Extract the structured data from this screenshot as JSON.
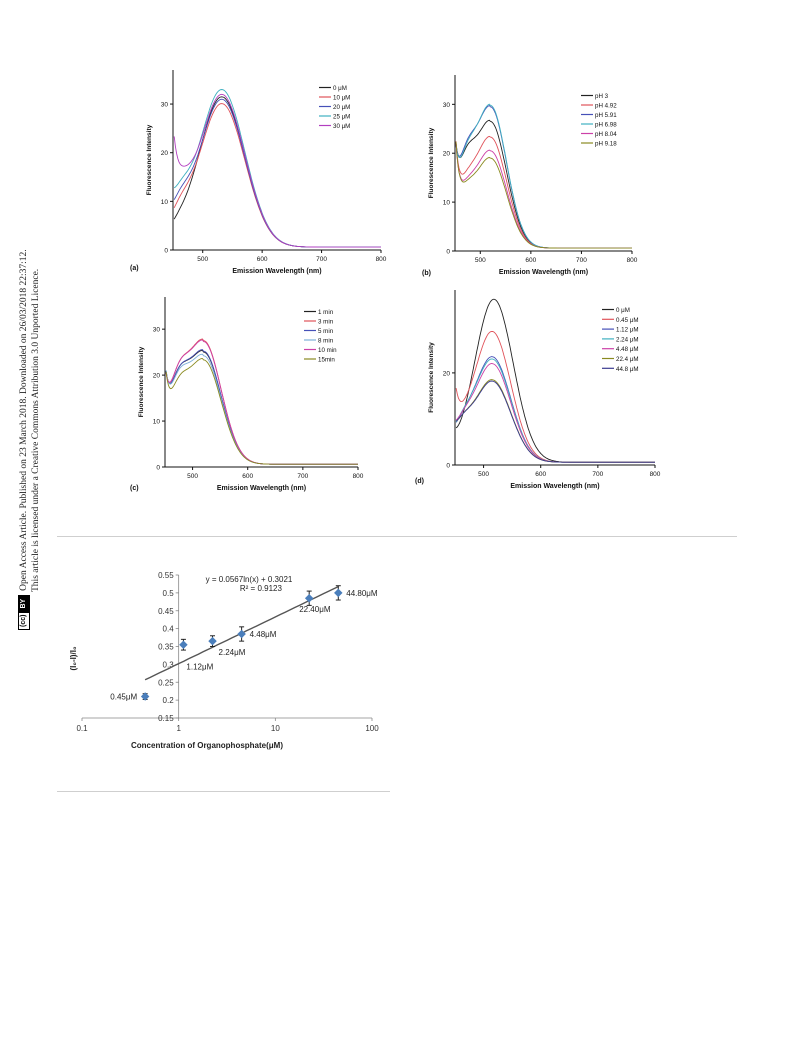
{
  "page": {
    "notice_line1": "Open Access Article. Published on 23 March 2018. Downloaded on 26/03/2018 22:37:12.",
    "notice_line2": "This article is licensed under a Creative Commons Attribution 3.0 Unported Licence.",
    "badge_cc": "(cc)",
    "badge_by": "BY"
  },
  "chart_data": [
    {
      "panel": "(a)",
      "type": "line",
      "xlabel": "Emission Wavelength (nm)",
      "ylabel": "Fluorescence Intensity",
      "xlim": [
        450,
        800
      ],
      "ylim": [
        0,
        37
      ],
      "xticks": [
        500,
        600,
        700,
        800
      ],
      "yticks": [
        0,
        10,
        20,
        30
      ],
      "legend_position": "top-right",
      "series": [
        {
          "name": "0 μM",
          "color": "#222222",
          "start": 6.8,
          "min": 7.0,
          "min_x": 455,
          "peak": 31.5,
          "peak_x": 532,
          "width": 55
        },
        {
          "name": "10 μM",
          "color": "#e0525a",
          "start": 11.0,
          "min": 10.5,
          "min_x": 460,
          "peak": 30.1,
          "peak_x": 532,
          "width": 55
        },
        {
          "name": "20 μM",
          "color": "#4650b8",
          "start": 13.0,
          "min": 11.8,
          "min_x": 460,
          "peak": 31.0,
          "peak_x": 532,
          "width": 55
        },
        {
          "name": "25 μM",
          "color": "#3fb0c0",
          "start": 16.0,
          "min": 13.0,
          "min_x": 460,
          "peak": 33.0,
          "peak_x": 532,
          "width": 55
        },
        {
          "name": "30 μM",
          "color": "#b23ec0",
          "start": 30.5,
          "min": 14.0,
          "min_x": 462,
          "peak": 32.0,
          "peak_x": 532,
          "width": 55
        }
      ]
    },
    {
      "panel": "(b)",
      "type": "line",
      "xlabel": "Emission Wavelength (nm)",
      "ylabel": "Fluorescence Intensity",
      "xlim": [
        450,
        800
      ],
      "ylim": [
        0,
        36
      ],
      "xticks": [
        500,
        600,
        700,
        800
      ],
      "yticks": [
        0,
        10,
        20,
        30
      ],
      "legend_position": "top-right",
      "series": [
        {
          "name": "pH 3",
          "color": "#222222",
          "start": 35,
          "min": 19.5,
          "min_x": 470,
          "peak": 26.5,
          "peak_x": 520,
          "width": 45
        },
        {
          "name": "pH 4.92",
          "color": "#e0525a",
          "start": 34,
          "min": 14.5,
          "min_x": 470,
          "peak": 23.3,
          "peak_x": 520,
          "width": 45
        },
        {
          "name": "pH 5.91",
          "color": "#4650b8",
          "start": 35,
          "min": 20.5,
          "min_x": 470,
          "peak": 29.5,
          "peak_x": 520,
          "width": 45
        },
        {
          "name": "pH 6.98",
          "color": "#3fb0c0",
          "start": 35,
          "min": 20.0,
          "min_x": 470,
          "peak": 29.8,
          "peak_x": 520,
          "width": 45
        },
        {
          "name": "pH 8.04",
          "color": "#cc40a8",
          "start": 33,
          "min": 13.0,
          "min_x": 470,
          "peak": 20.5,
          "peak_x": 520,
          "width": 45
        },
        {
          "name": "pH 9.18",
          "color": "#8a8a20",
          "start": 33,
          "min": 12.5,
          "min_x": 470,
          "peak": 19.0,
          "peak_x": 520,
          "width": 45
        }
      ]
    },
    {
      "panel": "(c)",
      "type": "line",
      "xlabel": "Emission Wavelength (nm)",
      "ylabel": "Fluorescence Intensity",
      "xlim": [
        450,
        800
      ],
      "ylim": [
        0,
        37
      ],
      "xticks": [
        500,
        600,
        700,
        800
      ],
      "yticks": [
        0,
        10,
        20,
        30
      ],
      "legend_position": "top-right",
      "series": [
        {
          "name": "1 min",
          "color": "#222222",
          "start": 35,
          "min": 20.0,
          "min_x": 472,
          "peak": 25.0,
          "peak_x": 520,
          "width": 45
        },
        {
          "name": "3 min",
          "color": "#e0525a",
          "start": 35,
          "min": 21.0,
          "min_x": 472,
          "peak": 27.5,
          "peak_x": 520,
          "width": 45
        },
        {
          "name": "5 min",
          "color": "#4650b8",
          "start": 35,
          "min": 20.0,
          "min_x": 472,
          "peak": 25.2,
          "peak_x": 520,
          "width": 45
        },
        {
          "name": "8 min",
          "color": "#7fb0d8",
          "start": 35,
          "min": 19.5,
          "min_x": 472,
          "peak": 24.2,
          "peak_x": 520,
          "width": 45
        },
        {
          "name": "10 min",
          "color": "#cc40a8",
          "start": 35,
          "min": 21.0,
          "min_x": 472,
          "peak": 27.3,
          "peak_x": 520,
          "width": 45
        },
        {
          "name": "15min",
          "color": "#8a8a20",
          "start": 34,
          "min": 18.0,
          "min_x": 472,
          "peak": 23.3,
          "peak_x": 520,
          "width": 45
        }
      ]
    },
    {
      "panel": "(d)",
      "type": "line",
      "xlabel": "Emission Wavelength (nm)",
      "ylabel": "Fluorescence Intensity",
      "xlim": [
        450,
        800
      ],
      "ylim": [
        0,
        38
      ],
      "xticks": [
        500,
        600,
        700,
        800
      ],
      "yticks": [
        0,
        20
      ],
      "legend_position": "top-right",
      "series": [
        {
          "name": "0 μM",
          "color": "#222222",
          "start": 11.5,
          "min": 9.0,
          "min_x": 460,
          "peak": 36.0,
          "peak_x": 518,
          "width": 48
        },
        {
          "name": "0.45 μM",
          "color": "#e0525a",
          "start": 22.0,
          "min": 10.5,
          "min_x": 460,
          "peak": 29.0,
          "peak_x": 515,
          "width": 46
        },
        {
          "name": "1.12 μM",
          "color": "#4650b8",
          "start": 12.0,
          "min": 10.5,
          "min_x": 460,
          "peak": 23.5,
          "peak_x": 515,
          "width": 46
        },
        {
          "name": "2.24 μM",
          "color": "#3fb0c0",
          "start": 12.0,
          "min": 10.8,
          "min_x": 460,
          "peak": 23.0,
          "peak_x": 515,
          "width": 46
        },
        {
          "name": "4.48 μM",
          "color": "#cc40a8",
          "start": 12.5,
          "min": 10.5,
          "min_x": 460,
          "peak": 22.0,
          "peak_x": 515,
          "width": 46
        },
        {
          "name": "22.4 μM",
          "color": "#8a8a20",
          "start": 12.0,
          "min": 10.0,
          "min_x": 460,
          "peak": 18.5,
          "peak_x": 515,
          "width": 46
        },
        {
          "name": "44.8 μM",
          "color": "#3a3a90",
          "start": 12.0,
          "min": 10.0,
          "min_x": 460,
          "peak": 18.2,
          "peak_x": 515,
          "width": 46
        }
      ]
    },
    {
      "panel": "calibration",
      "type": "scatter",
      "xlabel": "Concentration of Organophosphate(μM)",
      "ylabel": "(I₀-I)/I₀",
      "xscale": "log",
      "xlim": [
        0.1,
        100
      ],
      "ylim": [
        0.15,
        0.55
      ],
      "xticks": [
        0.1,
        1,
        10,
        100
      ],
      "xtick_labels": [
        "0.1",
        "1",
        "10",
        "100"
      ],
      "yticks": [
        0.15,
        0.2,
        0.25,
        0.3,
        0.35,
        0.4,
        0.45,
        0.5,
        0.55
      ],
      "ytick_labels": [
        "0.15",
        "0.2",
        "0.25",
        "0.3",
        "0.35",
        "0.4",
        "0.45",
        "0.5",
        "0.55"
      ],
      "marker_color": "#4a7ebb",
      "points": [
        {
          "x": 0.45,
          "y": 0.21,
          "err": 0.008,
          "label": "0.45μM",
          "label_pos": "left"
        },
        {
          "x": 1.12,
          "y": 0.355,
          "err": 0.015,
          "label": "1.12μM",
          "label_pos": "below"
        },
        {
          "x": 2.24,
          "y": 0.365,
          "err": 0.015,
          "label": "2.24μM",
          "label_pos": "below"
        },
        {
          "x": 4.48,
          "y": 0.385,
          "err": 0.02,
          "label": "4.48μM",
          "label_pos": "right"
        },
        {
          "x": 22.4,
          "y": 0.485,
          "err": 0.02,
          "label": "22.40μM",
          "label_pos": "below"
        },
        {
          "x": 44.8,
          "y": 0.5,
          "err": 0.02,
          "label": "44.80μM",
          "label_pos": "right"
        }
      ],
      "fit": {
        "equation": "y = 0.0567ln(x) + 0.3021",
        "r2": "R² = 0.9123",
        "a": 0.0567,
        "b": 0.3021,
        "x_range": [
          0.45,
          44.8
        ]
      }
    }
  ]
}
